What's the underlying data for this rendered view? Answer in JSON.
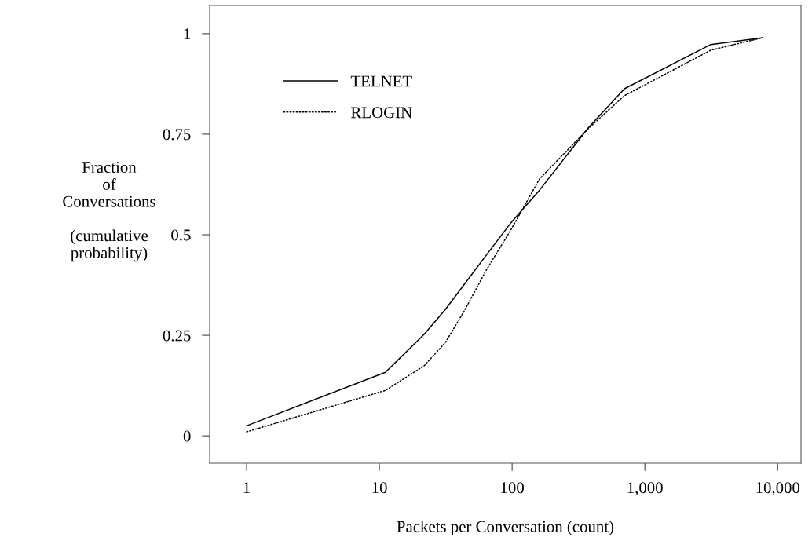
{
  "chart_data": {
    "type": "line",
    "xlabel": "Packets per Conversation (count)",
    "ylabel": "Fraction\nof\nConversations\n\n(cumulative\nprobability)",
    "log": "x",
    "xlim": [
      0.527,
      15000
    ],
    "ylim": [
      -0.068,
      1.07
    ],
    "xticks": [
      1,
      10,
      100,
      {
        "value": 1000,
        "label": "1,000"
      },
      {
        "value": 10000,
        "label": "10,000"
      }
    ],
    "yticks": [
      0,
      0.25,
      0.5,
      0.75,
      1
    ],
    "grid": false,
    "legend": "top left",
    "marker": "none",
    "series": [
      {
        "name": "TELNET",
        "color": "#000000",
        "line_style": "solid",
        "x": [
          1,
          11.1,
          21.7,
          31.4,
          43.7,
          63.8,
          98.6,
          161,
          375,
          702,
          3140,
          7720
        ],
        "values": [
          0.025,
          0.158,
          0.252,
          0.314,
          0.377,
          0.449,
          0.531,
          0.611,
          0.766,
          0.863,
          0.973,
          0.99
        ]
      },
      {
        "name": "RLOGIN",
        "color": "#000000",
        "line_style": "dotted",
        "x": [
          1,
          11.1,
          21.7,
          31.4,
          43.7,
          63.8,
          98.6,
          161,
          375,
          702,
          3140,
          7720
        ],
        "values": [
          0.01,
          0.113,
          0.174,
          0.232,
          0.311,
          0.412,
          0.514,
          0.639,
          0.764,
          0.846,
          0.959,
          0.99
        ]
      }
    ]
  }
}
